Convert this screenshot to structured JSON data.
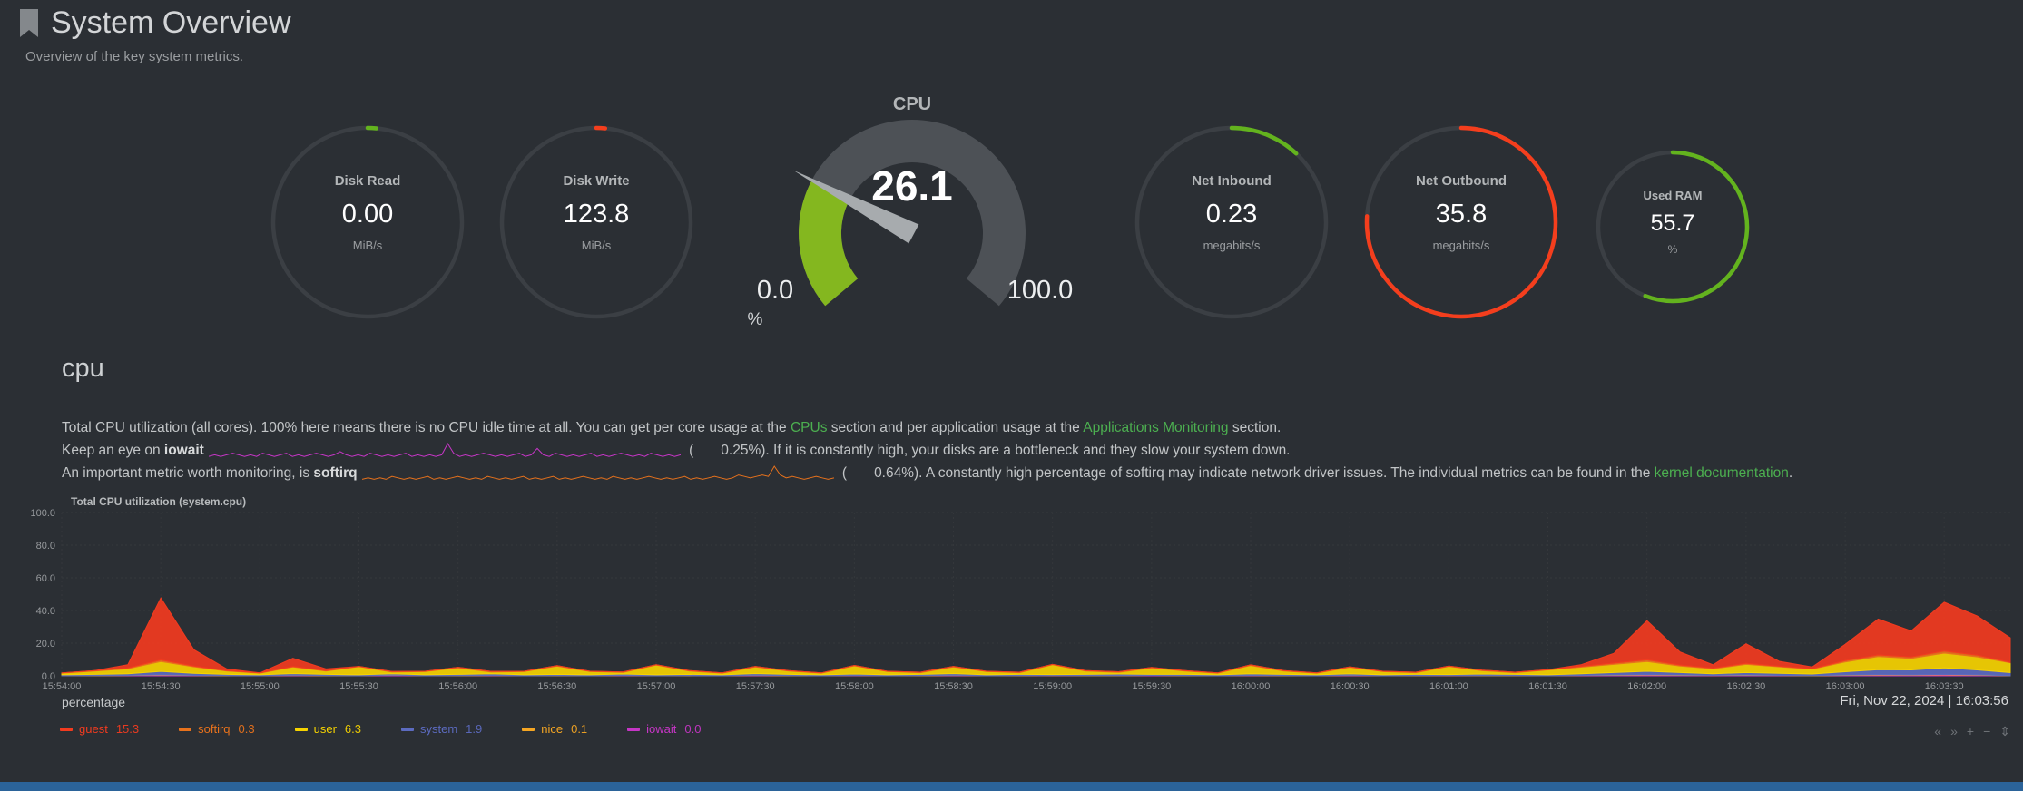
{
  "colors": {
    "background": "#2b2f34",
    "link": "#4caf50",
    "bottombar": "#2b6399"
  },
  "header": {
    "title": "System Overview",
    "subtitle": "Overview of the key system metrics."
  },
  "gauges": [
    {
      "id": "disk-read",
      "label": "Disk Read",
      "value": "0.00",
      "unit": "MiB/s",
      "pct": 1.5,
      "color": "#63b31e"
    },
    {
      "id": "disk-write",
      "label": "Disk Write",
      "value": "123.8",
      "unit": "MiB/s",
      "pct": 1.5,
      "color": "#f43e1d"
    },
    {
      "id": "net-inbound",
      "label": "Net Inbound",
      "value": "0.23",
      "unit": "megabits/s",
      "pct": 12,
      "color": "#63b31e"
    },
    {
      "id": "net-outbound",
      "label": "Net Outbound",
      "value": "35.8",
      "unit": "megabits/s",
      "pct": 76,
      "color": "#f43e1d"
    },
    {
      "id": "used-ram",
      "label": "Used RAM",
      "value": "55.7",
      "unit": "%",
      "pct": 56,
      "color": "#63b31e"
    }
  ],
  "cpu_gauge": {
    "title": "CPU",
    "display": "26.1",
    "value": 26.1,
    "min_v": 0,
    "max_v": 100,
    "min": "0.0",
    "max": "100.0",
    "unit": "%",
    "fill_color": "#84b71f",
    "track_color": "#4d5156"
  },
  "cpu_section": {
    "heading": "cpu",
    "p1": {
      "t1": "Total CPU utilization (all cores). 100% here means there is no CPU idle time at all. You can get per core usage at the ",
      "link1": "CPUs",
      "t2": " section and per application usage at the ",
      "link2": "Applications Monitoring",
      "t3": " section."
    },
    "p2": {
      "t1": "Keep an eye on ",
      "b": "iowait",
      "t2": " (",
      "value": "0.25%",
      "t3": "). If it is constantly high, your disks are a bottleneck and they slow your system down."
    },
    "p3": {
      "t1": "An important metric worth monitoring, is ",
      "b": "softirq",
      "t2": " (",
      "value": "0.64%",
      "t3": "). A constantly high percentage of softirq may indicate network driver issues. The individual metrics can be found in the ",
      "link": "kernel documentation",
      "t4": "."
    }
  },
  "sparklines": {
    "iowait": {
      "color": "#c636c6",
      "values": [
        1,
        2,
        1,
        2,
        3,
        2,
        1,
        2,
        1,
        3,
        2,
        1,
        2,
        3,
        1,
        2,
        1,
        2,
        3,
        2,
        1,
        2,
        4,
        2,
        1,
        2,
        1,
        3,
        2,
        1,
        2,
        1,
        2,
        3,
        1,
        2,
        1,
        2,
        1,
        2,
        9,
        3,
        1,
        2,
        1,
        2,
        3,
        2,
        1,
        2,
        1,
        2,
        3,
        1,
        2,
        6,
        2,
        1,
        3,
        2,
        1,
        2,
        1,
        2,
        3,
        1,
        2,
        1,
        2,
        3,
        2,
        1,
        2,
        1,
        3,
        2,
        1,
        2,
        1,
        2
      ]
    },
    "softirq": {
      "color": "#e8721c",
      "values": [
        1,
        2,
        1,
        2,
        1,
        3,
        2,
        1,
        2,
        1,
        2,
        3,
        1,
        2,
        1,
        2,
        3,
        2,
        1,
        2,
        1,
        3,
        2,
        1,
        2,
        1,
        2,
        3,
        1,
        2,
        1,
        2,
        3,
        1,
        2,
        1,
        2,
        3,
        2,
        1,
        2,
        1,
        3,
        2,
        1,
        2,
        1,
        2,
        3,
        2,
        1,
        2,
        1,
        2,
        3,
        1,
        2,
        1,
        2,
        3,
        2,
        1,
        2,
        4,
        3,
        2,
        3,
        4,
        3,
        10,
        4,
        2,
        3,
        2,
        1,
        2,
        3,
        2,
        1,
        2
      ]
    }
  },
  "chart_data": {
    "type": "area",
    "title": "Total CPU utilization (system.cpu)",
    "ylabel": "percentage",
    "ylim": [
      0,
      100
    ],
    "grid": true,
    "legend_position": "bottom",
    "timestamp": "Fri, Nov 22, 2024 | 16:03:56",
    "point_interval_s": 10,
    "tick_interval_s": 30,
    "y_ticks": [
      "100.0",
      "80.0",
      "60.0",
      "40.0",
      "20.0",
      "0.0"
    ],
    "x_ticks": [
      "15:54:00",
      "15:54:30",
      "15:55:00",
      "15:55:30",
      "15:56:00",
      "15:56:30",
      "15:57:00",
      "15:57:30",
      "15:58:00",
      "15:58:30",
      "15:59:00",
      "15:59:30",
      "16:00:00",
      "16:00:30",
      "16:01:00",
      "16:01:30",
      "16:02:00",
      "16:02:30",
      "16:03:00",
      "16:03:30"
    ],
    "series": [
      {
        "name": "guest",
        "color": "#f23b1f",
        "current": "15.3",
        "values": [
          0,
          0,
          2,
          38,
          10,
          1,
          0,
          5,
          1,
          0,
          0,
          0,
          0,
          0,
          0,
          0,
          0,
          0,
          0,
          0,
          0,
          0,
          0,
          0,
          0,
          0,
          0,
          0,
          0,
          0,
          0,
          0,
          0,
          0,
          0,
          0,
          0,
          0,
          0,
          0,
          0,
          0,
          0,
          0,
          0,
          0,
          1,
          6,
          24,
          8,
          2,
          12,
          3,
          1,
          10,
          22,
          16,
          30,
          24,
          15
        ]
      },
      {
        "name": "softirq",
        "color": "#e8721c",
        "current": "0.3",
        "values": [
          0.2,
          0.3,
          0.5,
          1,
          0.5,
          0.3,
          0.2,
          0.4,
          0.3,
          0.2,
          0.3,
          0.2,
          0.3,
          0.4,
          0.2,
          0.3,
          0.2,
          0.3,
          0.2,
          0.3,
          0.2,
          0.4,
          0.3,
          0.2,
          0.3,
          0.2,
          0.3,
          0.4,
          0.2,
          0.3,
          0.2,
          0.3,
          0.4,
          0.2,
          0.3,
          0.2,
          0.4,
          0.3,
          0.2,
          0.3,
          0.2,
          0.3,
          0.2,
          0.4,
          0.3,
          0.2,
          0.5,
          0.8,
          1,
          0.6,
          0.4,
          0.6,
          0.4,
          0.3,
          0.8,
          1,
          0.9,
          1.2,
          1,
          0.3
        ]
      },
      {
        "name": "user",
        "color": "#f6d300",
        "current": "6.3",
        "values": [
          1,
          2,
          3,
          6,
          4,
          2,
          1,
          4,
          2,
          5,
          1,
          2,
          4,
          1,
          2,
          5,
          2,
          1,
          6,
          2,
          1,
          4,
          2,
          1,
          5,
          2,
          1,
          4,
          2,
          1,
          6,
          2,
          1,
          4,
          2,
          1,
          5,
          2,
          1,
          4,
          2,
          1,
          5,
          2,
          1,
          3,
          4,
          5,
          6,
          4,
          3,
          5,
          4,
          3,
          6,
          8,
          7,
          9,
          8,
          6
        ]
      },
      {
        "name": "system",
        "color": "#5c6bc0",
        "current": "1.9",
        "values": [
          0.6,
          0.8,
          1,
          2,
          1.2,
          0.8,
          0.6,
          1,
          0.8,
          0.6,
          0.8,
          0.6,
          0.8,
          1,
          0.6,
          0.8,
          0.6,
          0.8,
          0.6,
          0.8,
          0.6,
          1,
          0.8,
          0.6,
          0.8,
          0.6,
          0.8,
          1,
          0.6,
          0.8,
          0.6,
          0.8,
          1,
          0.6,
          0.8,
          0.6,
          1,
          0.8,
          0.6,
          0.8,
          0.6,
          0.8,
          0.6,
          1,
          0.8,
          0.6,
          1,
          1.5,
          2,
          1.5,
          1,
          1.5,
          1.2,
          1,
          2,
          3,
          3,
          4,
          3,
          1.9
        ]
      },
      {
        "name": "nice",
        "color": "#f5a623",
        "current": "0.1",
        "values": [
          0,
          0.1,
          0.1,
          0.2,
          0.1,
          0.1,
          0,
          0.1,
          0.1,
          0,
          0.1,
          0,
          0.1,
          0.1,
          0,
          0.1,
          0,
          0.1,
          0,
          0.1,
          0,
          0.1,
          0.1,
          0,
          0.1,
          0,
          0.1,
          0.1,
          0,
          0.1,
          0,
          0.1,
          0.1,
          0,
          0.1,
          0,
          0.1,
          0.1,
          0,
          0.1,
          0,
          0.1,
          0,
          0.1,
          0.1,
          0,
          0.1,
          0.2,
          0.3,
          0.2,
          0.1,
          0.2,
          0.1,
          0.1,
          0.2,
          0.3,
          0.2,
          0.3,
          0.2,
          0.1
        ]
      },
      {
        "name": "iowait",
        "color": "#c636c6",
        "current": "0.0",
        "values": [
          0,
          0,
          0.2,
          0.5,
          0.2,
          0,
          0,
          0.3,
          0,
          0,
          0.4,
          0,
          0,
          0.2,
          0,
          0,
          0,
          0.2,
          0,
          0,
          0,
          0.3,
          0,
          0,
          0.2,
          0,
          0,
          0.3,
          0,
          0,
          0.2,
          0,
          0,
          0.3,
          0,
          0,
          0.2,
          0,
          0,
          0.3,
          0,
          0,
          0.2,
          0,
          0,
          0,
          0.2,
          0.3,
          0.5,
          0.3,
          0.2,
          0.3,
          0.2,
          0,
          0.3,
          0.5,
          0.4,
          0.6,
          0.4,
          0
        ]
      }
    ]
  },
  "toolbar": {
    "pan_left": "«",
    "pan_right": "»",
    "zoom_in": "+",
    "zoom_out": "−",
    "resize": "⇕"
  }
}
